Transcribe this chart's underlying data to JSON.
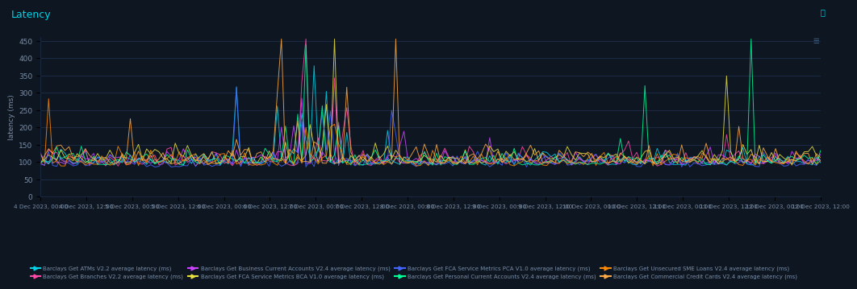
{
  "title": "Latency",
  "ylabel": "latency (ms)",
  "background_color": "#0e1621",
  "plot_bg_color": "#0e1621",
  "grid_color": "#1e3050",
  "title_color": "#00d4e8",
  "text_color": "#7a8ea8",
  "ylim": [
    0,
    460
  ],
  "yticks": [
    0,
    50,
    100,
    150,
    200,
    250,
    300,
    350,
    400,
    450
  ],
  "n_points": 192,
  "series": [
    {
      "label": "Barclays Get ATMs V2.2 average latency (ms)",
      "color": "#00d4e8"
    },
    {
      "label": "Barclays Get Branches V2.2 average latency (ms)",
      "color": "#ff4aaa"
    },
    {
      "label": "Barclays Get Business Current Accounts V2.4 average latency (ms)",
      "color": "#cc44ff"
    },
    {
      "label": "Barclays Get FCA Service Metrics BCA V1.0 average latency (ms)",
      "color": "#e8e040"
    },
    {
      "label": "Barclays Get FCA Service Metrics PCA V1.0 average latency (ms)",
      "color": "#4466ff"
    },
    {
      "label": "Barclays Get Personal Current Accounts V2.4 average latency (ms)",
      "color": "#00ff99"
    },
    {
      "label": "Barclays Get Unsecured SME Loans V2.4 average latency (ms)",
      "color": "#ff8800"
    },
    {
      "label": "Barclays Get Commercial Credit Cards V2.4 average latency (ms)",
      "color": "#ffaa44"
    }
  ],
  "x_tick_labels": [
    "4 Dec 2023, 00:00",
    "4 Dec 2023, 12:00",
    "5 Dec 2023, 00:00",
    "5 Dec 2023, 12:00",
    "6 Dec 2023, 00:00",
    "6 Dec 2023, 12:00",
    "7 Dec 2023, 00:00",
    "7 Dec 2023, 12:00",
    "8 Dec 2023, 00:00",
    "8 Dec 2023, 12:00",
    "9 Dec 2023, 00:00",
    "9 Dec 2023, 12:00",
    "10 Dec 2023, 00:00",
    "10 Dec 2023, 12:00",
    "11 Dec 2023, 00:00",
    "11 Dec 2023, 12:00",
    "12 Dec 2023, 00:00",
    "12 Dec 2023, 12:00"
  ]
}
